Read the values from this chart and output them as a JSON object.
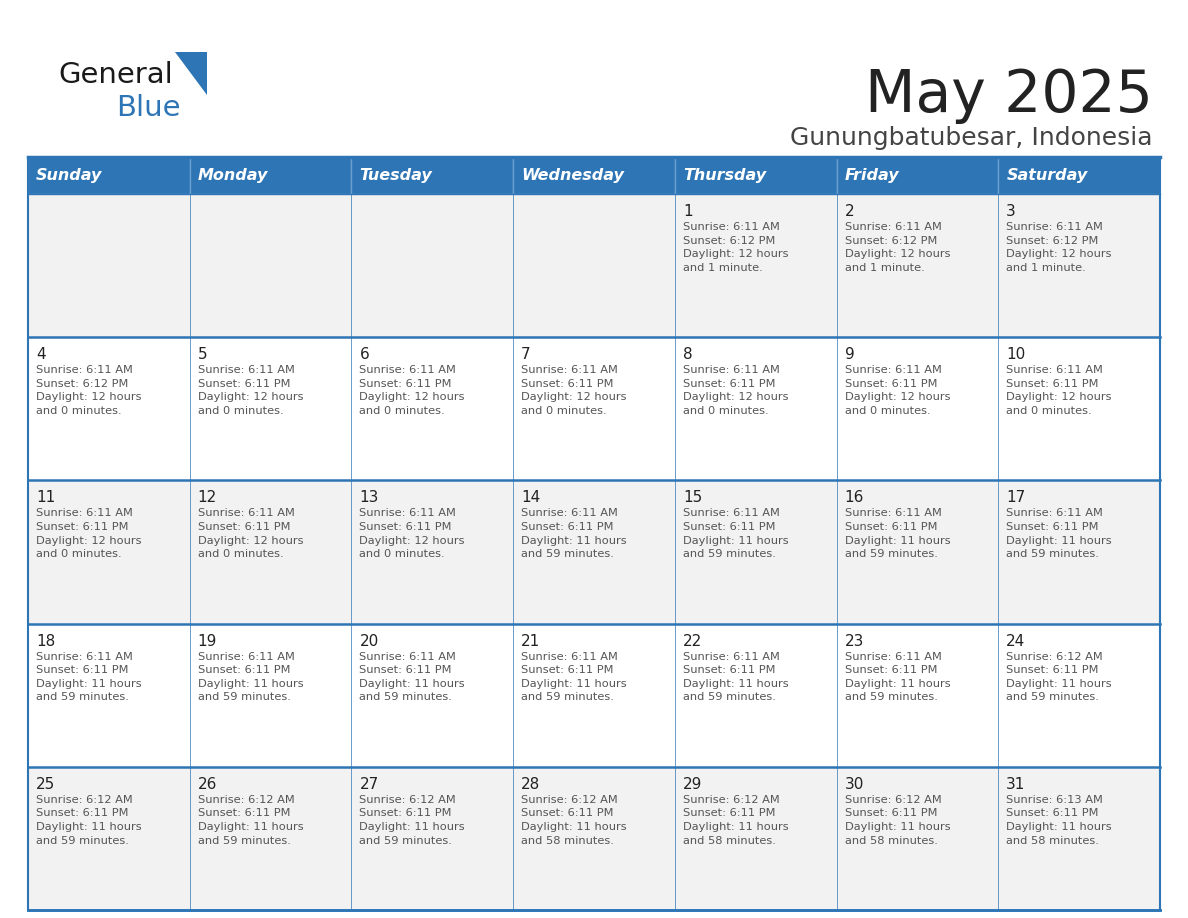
{
  "title": "May 2025",
  "subtitle": "Gunungbatubesar, Indonesia",
  "header_bg_color": "#2E75B6",
  "header_text_color": "#FFFFFF",
  "days_of_week": [
    "Sunday",
    "Monday",
    "Tuesday",
    "Wednesday",
    "Thursday",
    "Friday",
    "Saturday"
  ],
  "row_bg_even": "#F2F2F2",
  "row_bg_odd": "#FFFFFF",
  "cell_text_color": "#555555",
  "day_number_color": "#222222",
  "title_color": "#222222",
  "subtitle_color": "#444444",
  "grid_color": "#2E75B6",
  "calendar_data": [
    [
      {
        "day": "",
        "info": ""
      },
      {
        "day": "",
        "info": ""
      },
      {
        "day": "",
        "info": ""
      },
      {
        "day": "",
        "info": ""
      },
      {
        "day": "1",
        "info": "Sunrise: 6:11 AM\nSunset: 6:12 PM\nDaylight: 12 hours\nand 1 minute."
      },
      {
        "day": "2",
        "info": "Sunrise: 6:11 AM\nSunset: 6:12 PM\nDaylight: 12 hours\nand 1 minute."
      },
      {
        "day": "3",
        "info": "Sunrise: 6:11 AM\nSunset: 6:12 PM\nDaylight: 12 hours\nand 1 minute."
      }
    ],
    [
      {
        "day": "4",
        "info": "Sunrise: 6:11 AM\nSunset: 6:12 PM\nDaylight: 12 hours\nand 0 minutes."
      },
      {
        "day": "5",
        "info": "Sunrise: 6:11 AM\nSunset: 6:11 PM\nDaylight: 12 hours\nand 0 minutes."
      },
      {
        "day": "6",
        "info": "Sunrise: 6:11 AM\nSunset: 6:11 PM\nDaylight: 12 hours\nand 0 minutes."
      },
      {
        "day": "7",
        "info": "Sunrise: 6:11 AM\nSunset: 6:11 PM\nDaylight: 12 hours\nand 0 minutes."
      },
      {
        "day": "8",
        "info": "Sunrise: 6:11 AM\nSunset: 6:11 PM\nDaylight: 12 hours\nand 0 minutes."
      },
      {
        "day": "9",
        "info": "Sunrise: 6:11 AM\nSunset: 6:11 PM\nDaylight: 12 hours\nand 0 minutes."
      },
      {
        "day": "10",
        "info": "Sunrise: 6:11 AM\nSunset: 6:11 PM\nDaylight: 12 hours\nand 0 minutes."
      }
    ],
    [
      {
        "day": "11",
        "info": "Sunrise: 6:11 AM\nSunset: 6:11 PM\nDaylight: 12 hours\nand 0 minutes."
      },
      {
        "day": "12",
        "info": "Sunrise: 6:11 AM\nSunset: 6:11 PM\nDaylight: 12 hours\nand 0 minutes."
      },
      {
        "day": "13",
        "info": "Sunrise: 6:11 AM\nSunset: 6:11 PM\nDaylight: 12 hours\nand 0 minutes."
      },
      {
        "day": "14",
        "info": "Sunrise: 6:11 AM\nSunset: 6:11 PM\nDaylight: 11 hours\nand 59 minutes."
      },
      {
        "day": "15",
        "info": "Sunrise: 6:11 AM\nSunset: 6:11 PM\nDaylight: 11 hours\nand 59 minutes."
      },
      {
        "day": "16",
        "info": "Sunrise: 6:11 AM\nSunset: 6:11 PM\nDaylight: 11 hours\nand 59 minutes."
      },
      {
        "day": "17",
        "info": "Sunrise: 6:11 AM\nSunset: 6:11 PM\nDaylight: 11 hours\nand 59 minutes."
      }
    ],
    [
      {
        "day": "18",
        "info": "Sunrise: 6:11 AM\nSunset: 6:11 PM\nDaylight: 11 hours\nand 59 minutes."
      },
      {
        "day": "19",
        "info": "Sunrise: 6:11 AM\nSunset: 6:11 PM\nDaylight: 11 hours\nand 59 minutes."
      },
      {
        "day": "20",
        "info": "Sunrise: 6:11 AM\nSunset: 6:11 PM\nDaylight: 11 hours\nand 59 minutes."
      },
      {
        "day": "21",
        "info": "Sunrise: 6:11 AM\nSunset: 6:11 PM\nDaylight: 11 hours\nand 59 minutes."
      },
      {
        "day": "22",
        "info": "Sunrise: 6:11 AM\nSunset: 6:11 PM\nDaylight: 11 hours\nand 59 minutes."
      },
      {
        "day": "23",
        "info": "Sunrise: 6:11 AM\nSunset: 6:11 PM\nDaylight: 11 hours\nand 59 minutes."
      },
      {
        "day": "24",
        "info": "Sunrise: 6:12 AM\nSunset: 6:11 PM\nDaylight: 11 hours\nand 59 minutes."
      }
    ],
    [
      {
        "day": "25",
        "info": "Sunrise: 6:12 AM\nSunset: 6:11 PM\nDaylight: 11 hours\nand 59 minutes."
      },
      {
        "day": "26",
        "info": "Sunrise: 6:12 AM\nSunset: 6:11 PM\nDaylight: 11 hours\nand 59 minutes."
      },
      {
        "day": "27",
        "info": "Sunrise: 6:12 AM\nSunset: 6:11 PM\nDaylight: 11 hours\nand 59 minutes."
      },
      {
        "day": "28",
        "info": "Sunrise: 6:12 AM\nSunset: 6:11 PM\nDaylight: 11 hours\nand 58 minutes."
      },
      {
        "day": "29",
        "info": "Sunrise: 6:12 AM\nSunset: 6:11 PM\nDaylight: 11 hours\nand 58 minutes."
      },
      {
        "day": "30",
        "info": "Sunrise: 6:12 AM\nSunset: 6:11 PM\nDaylight: 11 hours\nand 58 minutes."
      },
      {
        "day": "31",
        "info": "Sunrise: 6:13 AM\nSunset: 6:11 PM\nDaylight: 11 hours\nand 58 minutes."
      }
    ]
  ],
  "logo_color_general": "#1a1a1a",
  "logo_color_blue": "#2E75B6",
  "logo_triangle_color": "#2E75B6",
  "fig_width": 11.88,
  "fig_height": 9.18,
  "dpi": 100
}
